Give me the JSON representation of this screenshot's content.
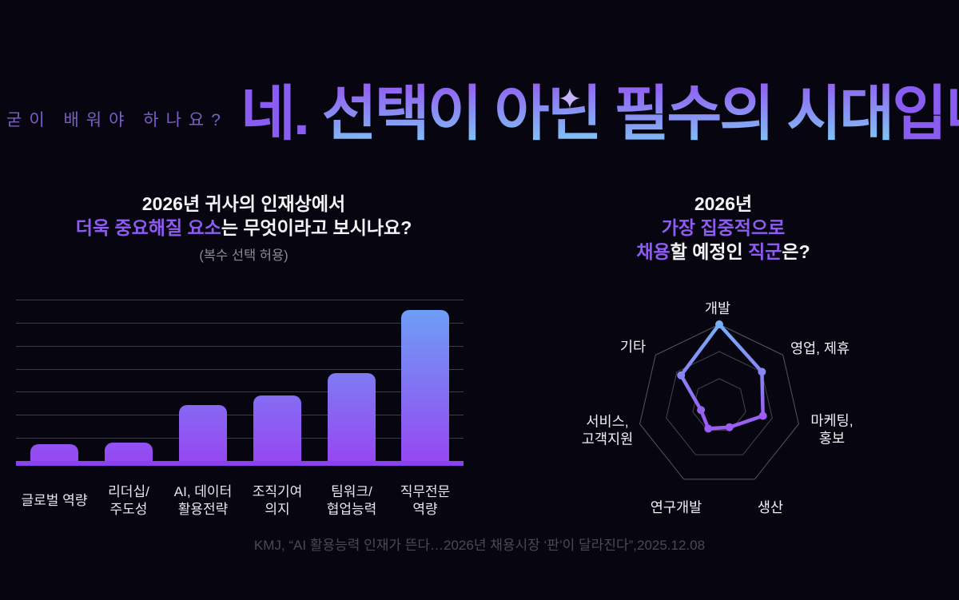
{
  "page": {
    "background": "#070510"
  },
  "header": {
    "kicker": "굳이 배워야 하나요?",
    "headline_parts": [
      "네. ",
      "선택이 아닌 ",
      "필수의 시대",
      "입니다!"
    ],
    "colors": {
      "purple": "#8a5df2",
      "blue": "#7fc2f5"
    }
  },
  "bar_section": {
    "title_line1": "2026년 귀사의 인재상에서",
    "title_line2_highlight": "더욱 중요해질 요소",
    "title_line2_rest": "는 무엇이라고 보시나요?",
    "subtitle": "(복수 선택 허용)"
  },
  "radar_section": {
    "title_line1": "2026년",
    "title_line2": "가장 집중적으로",
    "title_line3_hl1": "채용",
    "title_line3_mid": "할 예정인 ",
    "title_line3_hl2": "직군",
    "title_line3_end": "은?"
  },
  "source": "KMJ, “AI 활용능력 인재가 뜬다…2026년 채용시장 ‘판’이 달라진다”,2025.12.08",
  "chart_data": [
    {
      "type": "bar",
      "title": "2026년 귀사의 인재상에서 더욱 중요해질 요소 (복수 선택 허용)",
      "categories": [
        "글로벌 역량",
        "리더십/주도성",
        "AI, 데이터 활용전략",
        "조직기여 의지",
        "팀워크/협업능력",
        "직무전문 역량"
      ],
      "categories_lines": [
        [
          "글로벌 역량"
        ],
        [
          "리더십/",
          "주도성"
        ],
        [
          "AI, 데이터",
          "활용전략"
        ],
        [
          "조직기여",
          "의지"
        ],
        [
          "팀워크/",
          "협업능력"
        ],
        [
          "직무전문",
          "역량"
        ]
      ],
      "values_pct": [
        10.4,
        11.4,
        34.7,
        40.6,
        54.5,
        93.6
      ],
      "ylim": [
        0,
        100
      ],
      "grid": true,
      "legend": "none",
      "colors": {
        "bar_top_blue": "#6ba4f5",
        "bar_bottom_purple": "#9648f1",
        "baseline": "#8a42f0",
        "gridline": "#3c3c45"
      }
    },
    {
      "type": "radar",
      "title": "2026년 가장 집중적으로 채용할 예정인 직군",
      "categories": [
        "개발",
        "영업, 제휴",
        "마케팅, 홍보",
        "생산",
        "연구개발",
        "서비스, 고객지원",
        "기타"
      ],
      "categories_lines": [
        [
          "개발"
        ],
        [
          "영업, 제휴"
        ],
        [
          "마케팅,",
          "홍보"
        ],
        [
          "생산"
        ],
        [
          "연구개발"
        ],
        [
          "서비스,",
          "고객지원"
        ],
        [
          "기타"
        ]
      ],
      "values_pct": [
        100,
        67,
        55,
        29,
        31,
        23,
        60
      ],
      "rings": 3,
      "rlim": [
        0,
        100
      ],
      "colors": {
        "stroke_top": "#74b4f8",
        "stroke_bottom": "#9a5ef2",
        "grid_outer": "#565660",
        "grid_inner": "#45454e"
      }
    }
  ]
}
